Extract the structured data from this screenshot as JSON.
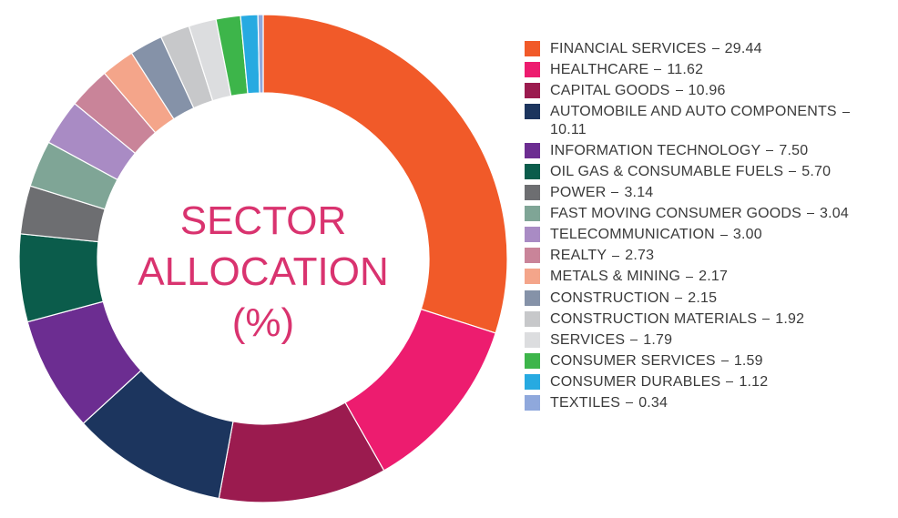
{
  "chart_data": {
    "type": "donut",
    "title": "SECTOR ALLOCATION (%)",
    "categories": [
      "FINANCIAL SERVICES",
      "HEALTHCARE",
      "CAPITAL GOODS",
      "AUTOMOBILE AND AUTO COMPONENTS",
      "INFORMATION TECHNOLOGY",
      "OIL GAS & CONSUMABLE FUELS",
      "POWER",
      "FAST MOVING CONSUMER GOODS",
      "TELECOMMUNICATION",
      "REALTY",
      "METALS & MINING",
      "CONSTRUCTION",
      "CONSTRUCTION MATERIALS",
      "SERVICES",
      "CONSUMER SERVICES",
      "CONSUMER DURABLES",
      "TEXTILES"
    ],
    "values": [
      29.44,
      11.62,
      10.96,
      10.11,
      7.5,
      5.7,
      3.14,
      3.04,
      3.0,
      2.73,
      2.17,
      2.15,
      1.92,
      1.79,
      1.59,
      1.12,
      0.34
    ],
    "value_labels": [
      "29.44",
      "11.62",
      "10.96",
      "10.11",
      "7.50",
      "5.70",
      "3.14",
      "3.04",
      "3.00",
      "2.73",
      "2.17",
      "2.15",
      "1.92",
      "1.79",
      "1.59",
      "1.12",
      "0.34"
    ],
    "colors": [
      "#f15a29",
      "#ed1c6f",
      "#9b1b4f",
      "#1c355e",
      "#6c2d91",
      "#0b5c4b",
      "#6d6e71",
      "#7fa596",
      "#a98bc4",
      "#c98499",
      "#f4a58a",
      "#8592a8",
      "#c7c8ca",
      "#dcdddf",
      "#3db54a",
      "#27aae1",
      "#8fa8dc"
    ],
    "legend": "right"
  }
}
